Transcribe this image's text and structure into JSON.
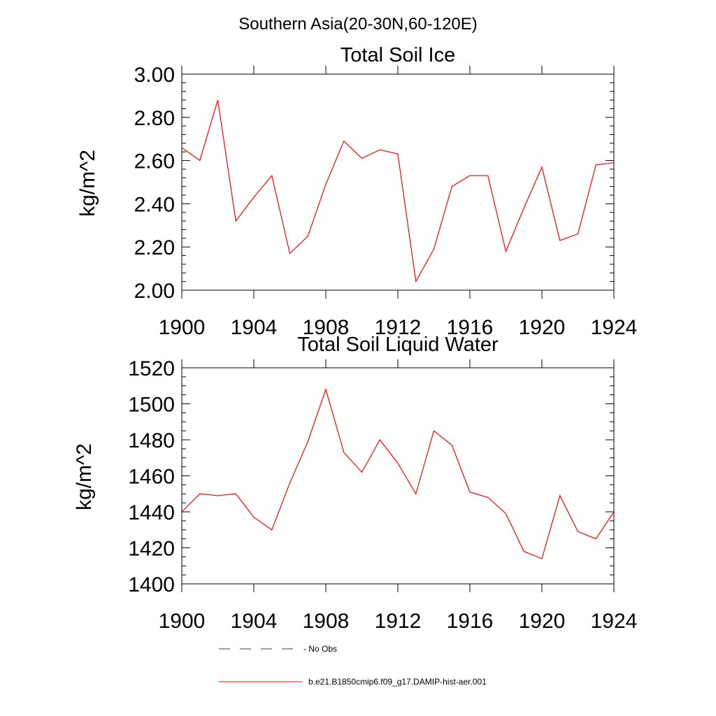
{
  "figure": {
    "title": "Southern Asia(20-30N,60-120E)"
  },
  "chart_data": [
    {
      "type": "line",
      "title": "Total Soil Ice",
      "xlabel": "",
      "ylabel": "kg/m^2",
      "xlim": [
        1900,
        1924
      ],
      "ylim": [
        2.0,
        3.0
      ],
      "xticks": [
        "1900",
        "1904",
        "1908",
        "1912",
        "1916",
        "1920",
        "1924"
      ],
      "yticks": [
        "2.00",
        "2.20",
        "2.40",
        "2.60",
        "2.80",
        "3.00"
      ],
      "grid": false,
      "x": [
        1900,
        1901,
        1902,
        1903,
        1904,
        1905,
        1906,
        1907,
        1908,
        1909,
        1910,
        1911,
        1912,
        1913,
        1914,
        1915,
        1916,
        1917,
        1918,
        1919,
        1920,
        1921,
        1922,
        1923,
        1924
      ],
      "series": [
        {
          "name": "b.e21.B1850cmip6.f09_g17.DAMIP-hist-aer.001",
          "color": "#ff0000",
          "values": [
            2.66,
            2.6,
            2.88,
            2.32,
            2.43,
            2.53,
            2.17,
            2.25,
            2.49,
            2.69,
            2.61,
            2.65,
            2.63,
            2.04,
            2.19,
            2.48,
            2.53,
            2.53,
            2.18,
            2.38,
            2.57,
            2.23,
            2.26,
            2.58,
            2.59
          ]
        }
      ]
    },
    {
      "type": "line",
      "title": "Total Soil Liquid Water",
      "xlabel": "",
      "ylabel": "kg/m^2",
      "xlim": [
        1900,
        1924
      ],
      "ylim": [
        1400,
        1520
      ],
      "xticks": [
        "1900",
        "1904",
        "1908",
        "1912",
        "1916",
        "1920",
        "1924"
      ],
      "yticks": [
        "1400",
        "1420",
        "1440",
        "1460",
        "1480",
        "1500",
        "1520"
      ],
      "grid": false,
      "x": [
        1900,
        1901,
        1902,
        1903,
        1904,
        1905,
        1906,
        1907,
        1908,
        1909,
        1910,
        1911,
        1912,
        1913,
        1914,
        1915,
        1916,
        1917,
        1918,
        1919,
        1920,
        1921,
        1922,
        1923,
        1924
      ],
      "series": [
        {
          "name": "b.e21.B1850cmip6.f09_g17.DAMIP-hist-aer.001",
          "color": "#ff0000",
          "values": [
            1440,
            1450,
            1449,
            1450,
            1437,
            1430,
            1456,
            1479,
            1508,
            1473,
            1462,
            1480,
            1467,
            1450,
            1485,
            1477,
            1451,
            1448,
            1439,
            1418,
            1414,
            1449,
            1429,
            1425,
            1440
          ]
        }
      ]
    }
  ],
  "legend": {
    "items": [
      {
        "label": "No Obs",
        "style": "dashed",
        "color": "#3a3a5a"
      },
      {
        "label": "b.e21.B1850cmip6.f09_g17.DAMIP-hist-aer.001",
        "style": "solid",
        "color": "#ff0000"
      }
    ]
  }
}
